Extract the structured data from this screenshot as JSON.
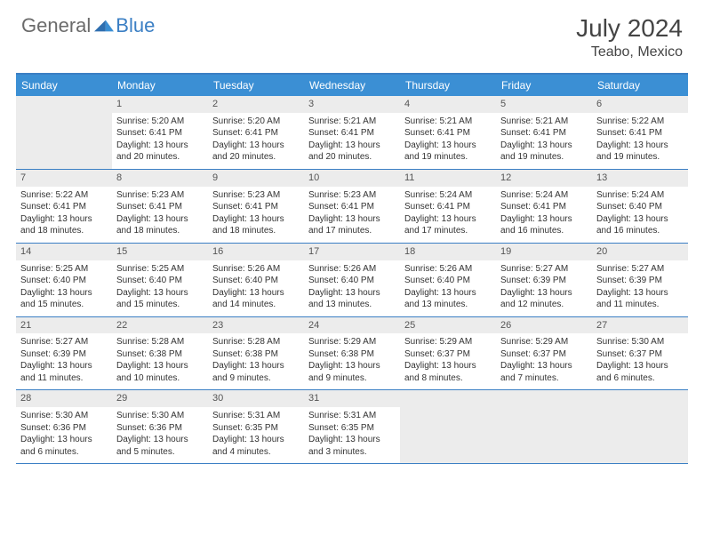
{
  "brand": {
    "part1": "General",
    "part2": "Blue"
  },
  "title": "July 2024",
  "location": "Teabo, Mexico",
  "colors": {
    "header_bar": "#3b8fd4",
    "border": "#3b7fc4",
    "daynum_bg": "#ececec",
    "text": "#333333",
    "logo_gray": "#6b6b6b",
    "logo_blue": "#3b7fc4"
  },
  "day_headers": [
    "Sunday",
    "Monday",
    "Tuesday",
    "Wednesday",
    "Thursday",
    "Friday",
    "Saturday"
  ],
  "weeks": [
    [
      {
        "empty": true
      },
      {
        "n": "1",
        "sr": "5:20 AM",
        "ss": "6:41 PM",
        "dl1": "Daylight: 13 hours",
        "dl2": "and 20 minutes."
      },
      {
        "n": "2",
        "sr": "5:20 AM",
        "ss": "6:41 PM",
        "dl1": "Daylight: 13 hours",
        "dl2": "and 20 minutes."
      },
      {
        "n": "3",
        "sr": "5:21 AM",
        "ss": "6:41 PM",
        "dl1": "Daylight: 13 hours",
        "dl2": "and 20 minutes."
      },
      {
        "n": "4",
        "sr": "5:21 AM",
        "ss": "6:41 PM",
        "dl1": "Daylight: 13 hours",
        "dl2": "and 19 minutes."
      },
      {
        "n": "5",
        "sr": "5:21 AM",
        "ss": "6:41 PM",
        "dl1": "Daylight: 13 hours",
        "dl2": "and 19 minutes."
      },
      {
        "n": "6",
        "sr": "5:22 AM",
        "ss": "6:41 PM",
        "dl1": "Daylight: 13 hours",
        "dl2": "and 19 minutes."
      }
    ],
    [
      {
        "n": "7",
        "sr": "5:22 AM",
        "ss": "6:41 PM",
        "dl1": "Daylight: 13 hours",
        "dl2": "and 18 minutes."
      },
      {
        "n": "8",
        "sr": "5:23 AM",
        "ss": "6:41 PM",
        "dl1": "Daylight: 13 hours",
        "dl2": "and 18 minutes."
      },
      {
        "n": "9",
        "sr": "5:23 AM",
        "ss": "6:41 PM",
        "dl1": "Daylight: 13 hours",
        "dl2": "and 18 minutes."
      },
      {
        "n": "10",
        "sr": "5:23 AM",
        "ss": "6:41 PM",
        "dl1": "Daylight: 13 hours",
        "dl2": "and 17 minutes."
      },
      {
        "n": "11",
        "sr": "5:24 AM",
        "ss": "6:41 PM",
        "dl1": "Daylight: 13 hours",
        "dl2": "and 17 minutes."
      },
      {
        "n": "12",
        "sr": "5:24 AM",
        "ss": "6:41 PM",
        "dl1": "Daylight: 13 hours",
        "dl2": "and 16 minutes."
      },
      {
        "n": "13",
        "sr": "5:24 AM",
        "ss": "6:40 PM",
        "dl1": "Daylight: 13 hours",
        "dl2": "and 16 minutes."
      }
    ],
    [
      {
        "n": "14",
        "sr": "5:25 AM",
        "ss": "6:40 PM",
        "dl1": "Daylight: 13 hours",
        "dl2": "and 15 minutes."
      },
      {
        "n": "15",
        "sr": "5:25 AM",
        "ss": "6:40 PM",
        "dl1": "Daylight: 13 hours",
        "dl2": "and 15 minutes."
      },
      {
        "n": "16",
        "sr": "5:26 AM",
        "ss": "6:40 PM",
        "dl1": "Daylight: 13 hours",
        "dl2": "and 14 minutes."
      },
      {
        "n": "17",
        "sr": "5:26 AM",
        "ss": "6:40 PM",
        "dl1": "Daylight: 13 hours",
        "dl2": "and 13 minutes."
      },
      {
        "n": "18",
        "sr": "5:26 AM",
        "ss": "6:40 PM",
        "dl1": "Daylight: 13 hours",
        "dl2": "and 13 minutes."
      },
      {
        "n": "19",
        "sr": "5:27 AM",
        "ss": "6:39 PM",
        "dl1": "Daylight: 13 hours",
        "dl2": "and 12 minutes."
      },
      {
        "n": "20",
        "sr": "5:27 AM",
        "ss": "6:39 PM",
        "dl1": "Daylight: 13 hours",
        "dl2": "and 11 minutes."
      }
    ],
    [
      {
        "n": "21",
        "sr": "5:27 AM",
        "ss": "6:39 PM",
        "dl1": "Daylight: 13 hours",
        "dl2": "and 11 minutes."
      },
      {
        "n": "22",
        "sr": "5:28 AM",
        "ss": "6:38 PM",
        "dl1": "Daylight: 13 hours",
        "dl2": "and 10 minutes."
      },
      {
        "n": "23",
        "sr": "5:28 AM",
        "ss": "6:38 PM",
        "dl1": "Daylight: 13 hours",
        "dl2": "and 9 minutes."
      },
      {
        "n": "24",
        "sr": "5:29 AM",
        "ss": "6:38 PM",
        "dl1": "Daylight: 13 hours",
        "dl2": "and 9 minutes."
      },
      {
        "n": "25",
        "sr": "5:29 AM",
        "ss": "6:37 PM",
        "dl1": "Daylight: 13 hours",
        "dl2": "and 8 minutes."
      },
      {
        "n": "26",
        "sr": "5:29 AM",
        "ss": "6:37 PM",
        "dl1": "Daylight: 13 hours",
        "dl2": "and 7 minutes."
      },
      {
        "n": "27",
        "sr": "5:30 AM",
        "ss": "6:37 PM",
        "dl1": "Daylight: 13 hours",
        "dl2": "and 6 minutes."
      }
    ],
    [
      {
        "n": "28",
        "sr": "5:30 AM",
        "ss": "6:36 PM",
        "dl1": "Daylight: 13 hours",
        "dl2": "and 6 minutes."
      },
      {
        "n": "29",
        "sr": "5:30 AM",
        "ss": "6:36 PM",
        "dl1": "Daylight: 13 hours",
        "dl2": "and 5 minutes."
      },
      {
        "n": "30",
        "sr": "5:31 AM",
        "ss": "6:35 PM",
        "dl1": "Daylight: 13 hours",
        "dl2": "and 4 minutes."
      },
      {
        "n": "31",
        "sr": "5:31 AM",
        "ss": "6:35 PM",
        "dl1": "Daylight: 13 hours",
        "dl2": "and 3 minutes."
      },
      {
        "empty": true
      },
      {
        "empty": true
      },
      {
        "empty": true
      }
    ]
  ],
  "labels": {
    "sunrise": "Sunrise:",
    "sunset": "Sunset:"
  }
}
